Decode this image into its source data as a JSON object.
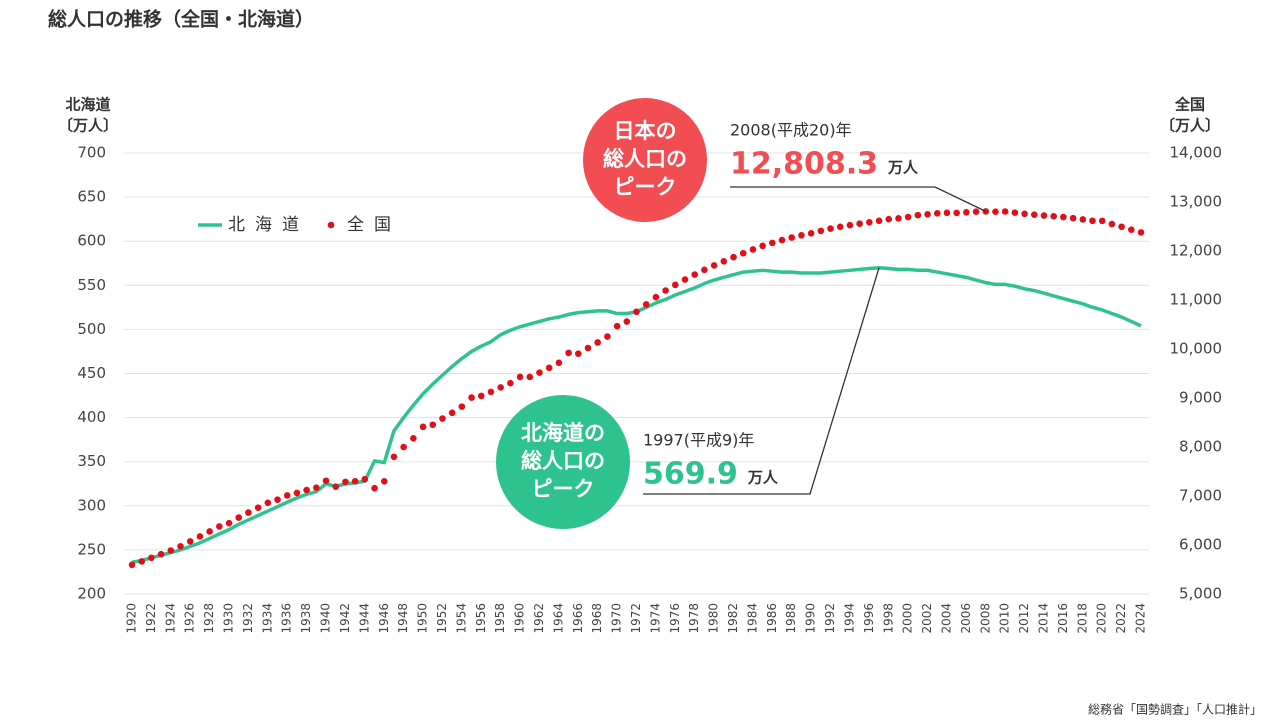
{
  "chart_data": {
    "type": "line",
    "title": "総人口の推移（全国・北海道）",
    "y_label": [
      "北海道",
      "〔万人〕"
    ],
    "y2_label": [
      "全国",
      "〔万人〕"
    ],
    "source": "総務省「国勢調査」「人口推計」",
    "x": [
      1920,
      1921,
      1922,
      1923,
      1924,
      1925,
      1926,
      1927,
      1928,
      1929,
      1930,
      1931,
      1932,
      1933,
      1934,
      1935,
      1936,
      1937,
      1938,
      1939,
      1940,
      1941,
      1942,
      1943,
      1944,
      1945,
      1946,
      1947,
      1948,
      1949,
      1950,
      1951,
      1952,
      1953,
      1954,
      1955,
      1956,
      1957,
      1958,
      1959,
      1960,
      1961,
      1962,
      1963,
      1964,
      1965,
      1966,
      1967,
      1968,
      1969,
      1970,
      1971,
      1972,
      1973,
      1974,
      1975,
      1976,
      1977,
      1978,
      1979,
      1980,
      1981,
      1982,
      1983,
      1984,
      1985,
      1986,
      1987,
      1988,
      1989,
      1990,
      1991,
      1992,
      1993,
      1994,
      1995,
      1996,
      1997,
      1998,
      1999,
      2000,
      2001,
      2002,
      2003,
      2004,
      2005,
      2006,
      2007,
      2008,
      2009,
      2010,
      2011,
      2012,
      2013,
      2014,
      2015,
      2016,
      2017,
      2018,
      2019,
      2020,
      2021,
      2022,
      2023,
      2024
    ],
    "xlim": [
      1920,
      2024
    ],
    "xticks": [
      1920,
      1922,
      1924,
      1926,
      1928,
      1930,
      1932,
      1934,
      1936,
      1938,
      1940,
      1942,
      1944,
      1946,
      1948,
      1950,
      1952,
      1954,
      1956,
      1958,
      1960,
      1962,
      1964,
      1966,
      1968,
      1970,
      1972,
      1974,
      1976,
      1978,
      1980,
      1982,
      1984,
      1986,
      1988,
      1990,
      1992,
      1994,
      1996,
      1998,
      2000,
      2002,
      2004,
      2006,
      2008,
      2010,
      2012,
      2014,
      2016,
      2018,
      2020,
      2022,
      2024
    ],
    "ylim": [
      200,
      700
    ],
    "yticks": [
      200,
      250,
      300,
      350,
      400,
      450,
      500,
      550,
      600,
      650,
      700
    ],
    "y2lim": [
      5000,
      14000
    ],
    "y2ticks": [
      {
        "value": 5000,
        "label": "5,000"
      },
      {
        "value": 6000,
        "label": "6,000"
      },
      {
        "value": 7000,
        "label": "7,000"
      },
      {
        "value": 8000,
        "label": "8,000"
      },
      {
        "value": 9000,
        "label": "9,000"
      },
      {
        "value": 10000,
        "label": "10,000"
      },
      {
        "value": 11000,
        "label": "11,000"
      },
      {
        "value": 12000,
        "label": "12,000"
      },
      {
        "value": 13000,
        "label": "13,000"
      },
      {
        "value": 14000,
        "label": "14,000"
      }
    ],
    "grid": true,
    "series": [
      {
        "name": "北海道",
        "color": "#2ec38e",
        "mode": "line",
        "axis": "y",
        "values": [
          236,
          238,
          241,
          244,
          247,
          250,
          254,
          258,
          263,
          268,
          273,
          279,
          284,
          289,
          294,
          299,
          304,
          309,
          313,
          316,
          325,
          322,
          325,
          326,
          328,
          351,
          349,
          385,
          400,
          414,
          427,
          438,
          448,
          458,
          467,
          475,
          481,
          486,
          494,
          499,
          503,
          506,
          509,
          512,
          514,
          517,
          519,
          520,
          521,
          521,
          518,
          518,
          520,
          525,
          530,
          534,
          539,
          543,
          547,
          552,
          556,
          559,
          562,
          565,
          566,
          567,
          566,
          565,
          565,
          564,
          564,
          564,
          565,
          566,
          567,
          568,
          569,
          569.9,
          569,
          568,
          568,
          567,
          567,
          565,
          563,
          561,
          559,
          556,
          553,
          551,
          551,
          549,
          546,
          544,
          541,
          538,
          535,
          532,
          529,
          525,
          522,
          518,
          514,
          509,
          504
        ]
      },
      {
        "name": "全国",
        "color": "#e0101a",
        "mode": "markers",
        "axis": "y2",
        "values": [
          5596,
          5666,
          5739,
          5812,
          5888,
          5974,
          6074,
          6174,
          6276,
          6379,
          6445,
          6559,
          6661,
          6761,
          6861,
          6925,
          7011,
          7063,
          7121,
          7169,
          7311,
          7190,
          7288,
          7299,
          7343,
          7160,
          7300,
          7800,
          8000,
          8177,
          8411,
          8454,
          8581,
          8698,
          8824,
          9008,
          9043,
          9124,
          9217,
          9303,
          9430,
          9429,
          9518,
          9616,
          9718,
          9921,
          9904,
          10020,
          10133,
          10254,
          10467,
          10560,
          10760,
          10910,
          11057,
          11194,
          11309,
          11417,
          11519,
          11616,
          11706,
          11790,
          11873,
          11954,
          12031,
          12105,
          12166,
          12224,
          12275,
          12321,
          12361,
          12410,
          12457,
          12494,
          12527,
          12557,
          12586,
          12616,
          12649,
          12667,
          12693,
          12732,
          12749,
          12769,
          12779,
          12777,
          12790,
          12803,
          12808.3,
          12803,
          12806,
          12783,
          12759,
          12741,
          12724,
          12709,
          12693,
          12671,
          12644,
          12617,
          12615,
          12550,
          12495,
          12435,
          12380
        ]
      }
    ],
    "annotations": [
      {
        "bubble": [
          "日本の",
          "総人口の",
          "ピーク"
        ],
        "year": "2008(平成20)年",
        "number": "12,808.3",
        "unit": "万人",
        "series": 1,
        "index": 88
      },
      {
        "bubble": [
          "北海道の",
          "総人口の",
          "ピーク"
        ],
        "year": "1997(平成9)年",
        "number": "569.9",
        "unit": "万人",
        "series": 0,
        "index": 77
      }
    ]
  }
}
